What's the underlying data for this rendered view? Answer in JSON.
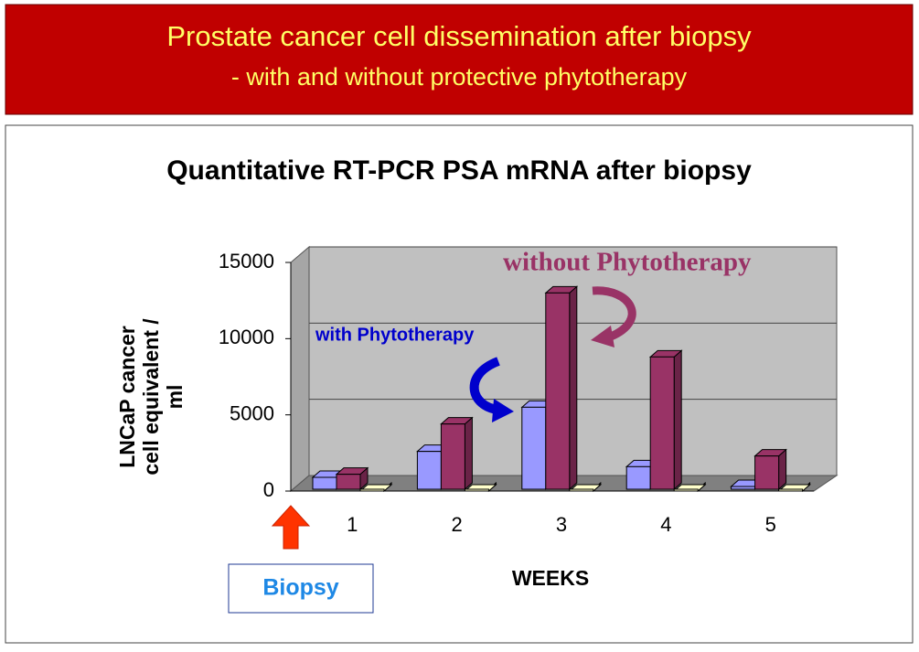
{
  "header": {
    "title": "Prostate cancer cell dissemination after biopsy",
    "subtitle": "- with and without protective phytotherapy"
  },
  "chart_data": {
    "type": "bar3d",
    "title": "Quantitative RT-PCR PSA mRNA after biopsy",
    "categories": [
      "1",
      "2",
      "3",
      "4",
      "5"
    ],
    "series": [
      {
        "name": "with Phytotherapy",
        "color": "#9999ff",
        "values": [
          900,
          2600,
          5500,
          1600,
          300
        ]
      },
      {
        "name": "without Phytotherapy",
        "color": "#993366",
        "values": [
          1100,
          4400,
          13000,
          8800,
          2300
        ]
      },
      {
        "color": "#ffffcc",
        "values": [
          0,
          0,
          0,
          0,
          0
        ]
      }
    ],
    "ylim": [
      0,
      15000
    ],
    "yticks": [
      0,
      5000,
      10000,
      15000
    ],
    "grid": true,
    "y_label": "LNCaP cancer cell equivalent / ml",
    "x_label": "WEEKS",
    "annotations": [
      "Biopsy"
    ]
  }
}
